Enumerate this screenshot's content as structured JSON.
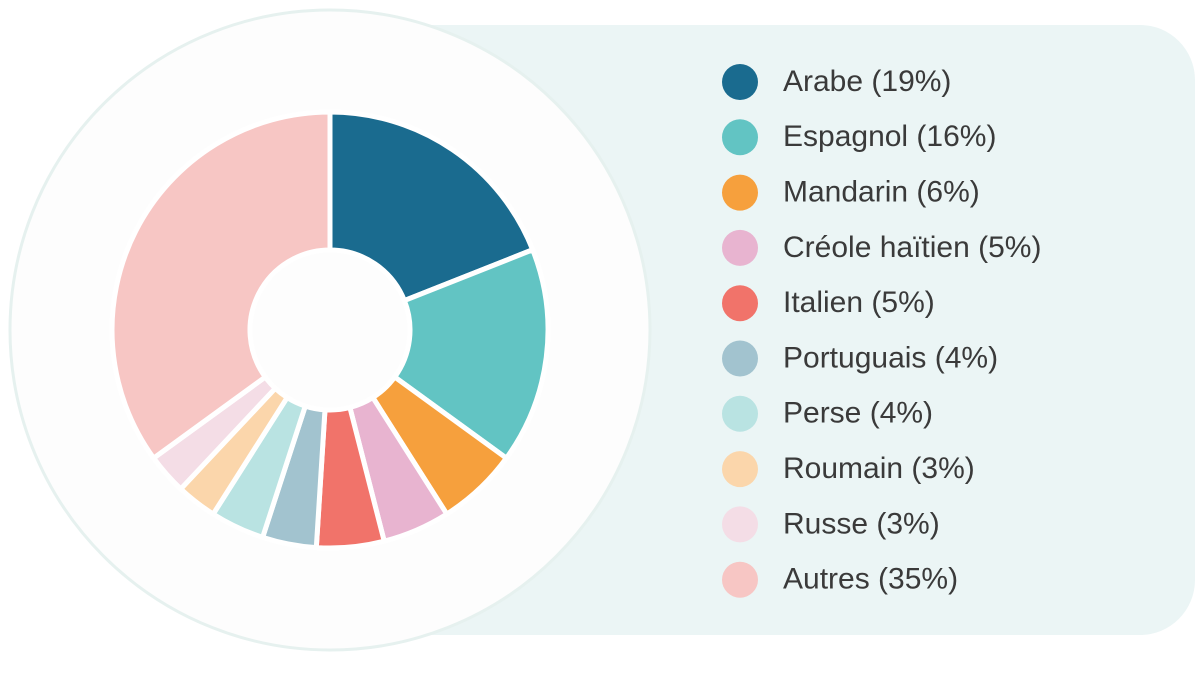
{
  "chart_data": {
    "type": "donut",
    "categories": [
      "Arabe (19%)",
      "Espagnol (16%)",
      "Mandarin (6%)",
      "Créole haïtien (5%)",
      "Italien (5%)",
      "Portuguais (4%)",
      "Perse (4%)",
      "Roumain (3%)",
      "Russe (3%)",
      "Autres (35%)"
    ],
    "values": [
      19,
      16,
      6,
      5,
      5,
      4,
      4,
      3,
      3,
      35
    ],
    "colors": [
      "#1a6b8f",
      "#62c4c3",
      "#f6a03d",
      "#e8b4d0",
      "#f1736a",
      "#a2c3cf",
      "#b9e3e2",
      "#fbd6ab",
      "#f4dde6",
      "#f7c6c4"
    ],
    "legend": "right"
  }
}
